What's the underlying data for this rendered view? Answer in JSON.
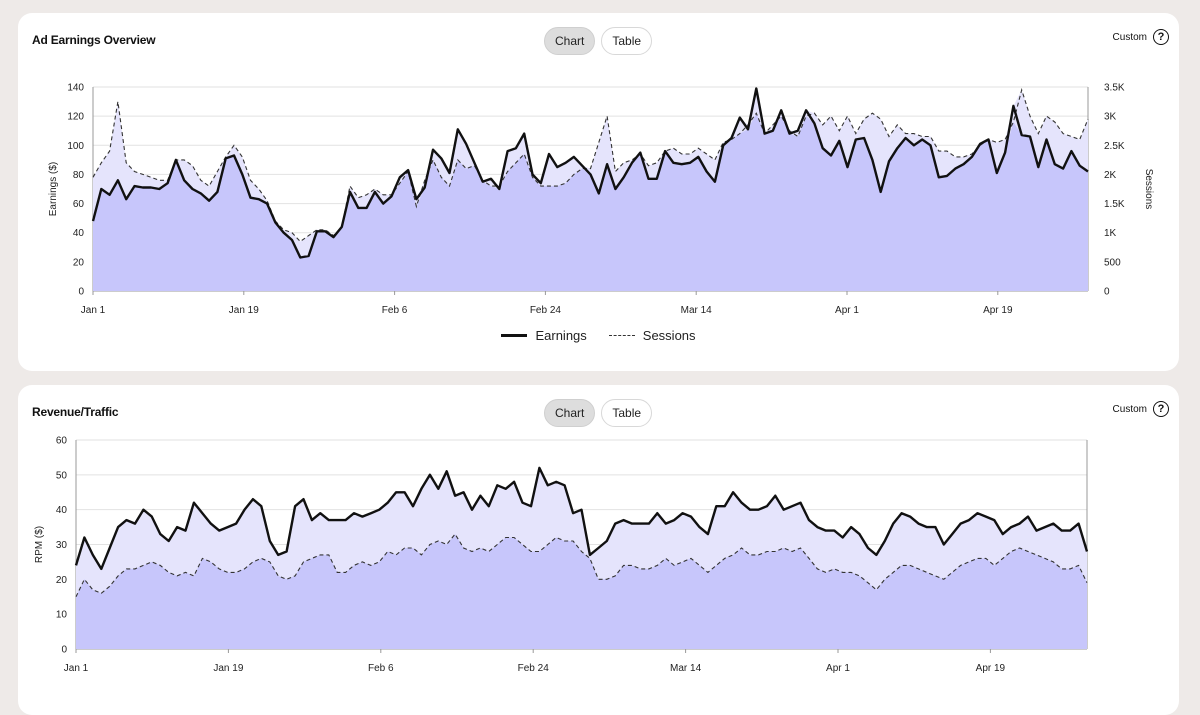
{
  "panels": [
    {
      "title": "Ad Earnings Overview",
      "toggle": {
        "chart": "Chart",
        "table": "Table",
        "active": "chart"
      },
      "custom_label": "Custom",
      "help_glyph": "?",
      "legend": {
        "earnings": "Earnings",
        "sessions": "Sessions"
      }
    },
    {
      "title": "Revenue/Traffic",
      "toggle": {
        "chart": "Chart",
        "table": "Table",
        "active": "chart"
      },
      "custom_label": "Custom",
      "help_glyph": "?"
    }
  ],
  "colors": {
    "fill_main": "#c7c6fb",
    "fill_light": "#e5e4fc",
    "line": "#111111",
    "grid": "#e2e2e2"
  },
  "chart_data": [
    {
      "type": "area",
      "title": "Ad Earnings Overview",
      "x_tick_labels": [
        "Jan 1",
        "Jan 19",
        "Feb 6",
        "Feb 24",
        "Mar 14",
        "Apr 1",
        "Apr 19"
      ],
      "x_range": [
        "Jan 1",
        "May 2"
      ],
      "ylabel": "Earnings ($)",
      "ylim": [
        0,
        140
      ],
      "y_ticks": [
        "0",
        "20",
        "40",
        "60",
        "80",
        "100",
        "120",
        "140"
      ],
      "y2label": "Sessions",
      "y2lim": [
        0,
        3500
      ],
      "y2_ticks": [
        "0",
        "500",
        "1K",
        "1.5K",
        "2K",
        "2.5K",
        "3K",
        "3.5K"
      ],
      "grid": true,
      "legend_position": "bottom-center",
      "series": [
        {
          "name": "Earnings",
          "axis": "left",
          "style": "solid",
          "values": [
            48,
            70,
            66,
            76,
            63,
            72,
            71,
            71,
            70,
            74,
            90,
            76,
            70,
            67,
            62,
            68,
            91,
            93,
            80,
            64,
            63,
            60,
            47,
            40,
            35,
            23,
            24,
            41,
            41,
            37,
            44,
            68,
            57,
            57,
            68,
            60,
            65,
            78,
            83,
            63,
            71,
            97,
            91,
            81,
            111,
            101,
            88,
            75,
            77,
            70,
            96,
            98,
            108,
            80,
            74,
            94,
            85,
            88,
            92,
            86,
            80,
            67,
            87,
            70,
            78,
            88,
            95,
            77,
            77,
            96,
            88,
            87,
            88,
            92,
            82,
            75,
            100,
            105,
            119,
            111,
            139,
            108,
            110,
            124,
            108,
            110,
            124,
            115,
            98,
            93,
            103,
            85,
            104,
            105,
            90,
            68,
            89,
            98,
            105,
            100,
            104,
            100,
            78,
            79,
            84,
            87,
            92,
            101,
            104,
            81,
            95,
            127,
            107,
            106,
            85,
            104,
            87,
            84,
            96,
            86,
            82
          ]
        },
        {
          "name": "Sessions",
          "axis": "right",
          "style": "dashed",
          "values": [
            1950,
            2200,
            2400,
            3250,
            2200,
            2050,
            2000,
            1950,
            1900,
            1900,
            2250,
            2250,
            2150,
            1900,
            1800,
            2050,
            2300,
            2500,
            2300,
            1900,
            1750,
            1550,
            1200,
            1050,
            1000,
            850,
            950,
            1050,
            1050,
            950,
            1100,
            1800,
            1600,
            1650,
            1750,
            1650,
            1650,
            1850,
            2050,
            1450,
            1900,
            2250,
            1950,
            1800,
            2250,
            2100,
            2150,
            1900,
            1800,
            1800,
            2050,
            2200,
            2350,
            1950,
            1800,
            1800,
            1800,
            1850,
            2000,
            2100,
            2100,
            2550,
            3000,
            2050,
            2200,
            2250,
            2350,
            2150,
            2200,
            2400,
            2450,
            2350,
            2350,
            2450,
            2350,
            2250,
            2550,
            2600,
            2700,
            2850,
            3050,
            2700,
            2850,
            3000,
            2750,
            2650,
            3000,
            3050,
            2850,
            3000,
            2750,
            3000,
            2700,
            2950,
            3050,
            2950,
            2650,
            2850,
            2700,
            2700,
            2650,
            2650,
            2400,
            2400,
            2300,
            2300,
            2350,
            2500,
            2600,
            2550,
            2600,
            2900,
            3450,
            3000,
            2700,
            3000,
            2900,
            2700,
            2650,
            2600,
            2950
          ]
        }
      ]
    },
    {
      "type": "area",
      "title": "Revenue/Traffic",
      "x_tick_labels": [
        "Jan 1",
        "Jan 19",
        "Feb 6",
        "Feb 24",
        "Mar 14",
        "Apr 1",
        "Apr 19"
      ],
      "x_range": [
        "Jan 1",
        "May 2"
      ],
      "ylabel": "RPM ($)",
      "ylim": [
        0,
        60
      ],
      "y_ticks": [
        "0",
        "10",
        "20",
        "30",
        "40",
        "50",
        "60"
      ],
      "grid": true,
      "series": [
        {
          "axis": "left",
          "style": "solid",
          "values": [
            24,
            32,
            27,
            23,
            29,
            35,
            37,
            36,
            40,
            38,
            33,
            31,
            35,
            34,
            42,
            39,
            36,
            34,
            35,
            36,
            40,
            43,
            41,
            31,
            27,
            28,
            41,
            43,
            37,
            39,
            37,
            37,
            37,
            39,
            38,
            39,
            40,
            42,
            45,
            45,
            41,
            46,
            50,
            46,
            51,
            44,
            45,
            40,
            44,
            41,
            47,
            46,
            48,
            42,
            41,
            52,
            47,
            48,
            47,
            39,
            40,
            27,
            29,
            31,
            36,
            37,
            36,
            36,
            36,
            39,
            36,
            37,
            39,
            38,
            35,
            33,
            41,
            41,
            45,
            42,
            40,
            40,
            41,
            44,
            40,
            41,
            42,
            37,
            35,
            34,
            34,
            32,
            35,
            33,
            29,
            27,
            31,
            36,
            39,
            38,
            36,
            35,
            35,
            30,
            33,
            36,
            37,
            39,
            38,
            37,
            33,
            35,
            36,
            38,
            34,
            35,
            36,
            34,
            34,
            36,
            28
          ]
        },
        {
          "axis": "left",
          "style": "dashed",
          "values": [
            15,
            20,
            17,
            16,
            18,
            21,
            23,
            23,
            24,
            25,
            24,
            22,
            21,
            22,
            21,
            26,
            25,
            23,
            22,
            22,
            23,
            25,
            26,
            25,
            21,
            20,
            21,
            25,
            26,
            27,
            27,
            22,
            22,
            24,
            25,
            24,
            25,
            28,
            27,
            29,
            29,
            27,
            30,
            31,
            30,
            33,
            29,
            28,
            29,
            28,
            30,
            32,
            32,
            30,
            28,
            28,
            30,
            32,
            31,
            31,
            28,
            26,
            20,
            20,
            21,
            24,
            24,
            23,
            23,
            24,
            26,
            24,
            25,
            26,
            24,
            22,
            24,
            26,
            27,
            29,
            27,
            27,
            28,
            28,
            29,
            28,
            29,
            26,
            23,
            22,
            23,
            22,
            22,
            21,
            19,
            17,
            20,
            22,
            24,
            24,
            23,
            22,
            21,
            20,
            22,
            24,
            25,
            26,
            26,
            24,
            26,
            28,
            29,
            28,
            27,
            26,
            25,
            23,
            23,
            24,
            19
          ]
        }
      ]
    }
  ]
}
